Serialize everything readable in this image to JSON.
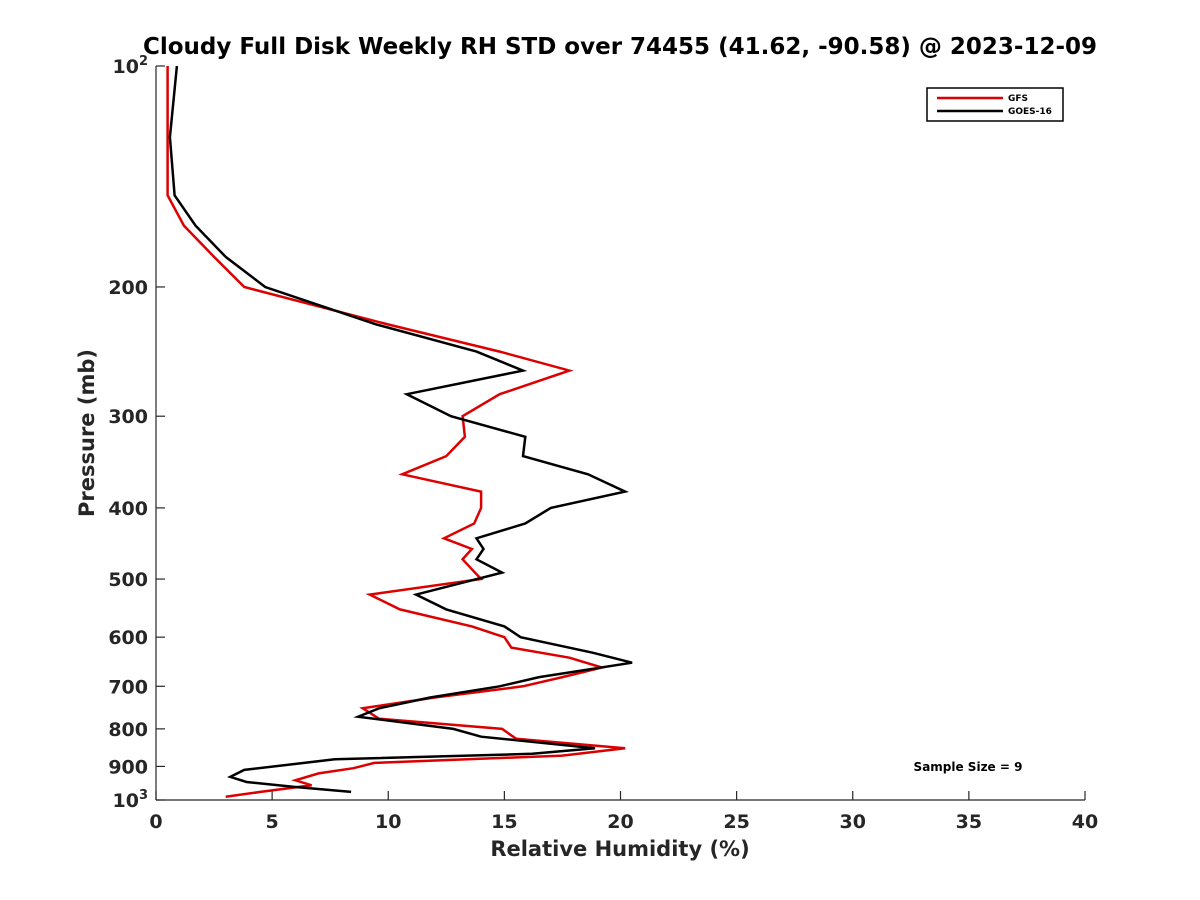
{
  "chart_data": {
    "type": "line",
    "title": "Cloudy Full Disk Weekly RH STD over 74455 (41.62, -90.58) @ 2023-12-09",
    "xlabel": "Relative Humidity (%)",
    "ylabel": "Pressure (mb)",
    "xlim": [
      0,
      40
    ],
    "ylim": [
      100,
      1000
    ],
    "y_scale": "log",
    "y_reversed": true,
    "grid": false,
    "x_ticks": [
      0,
      5,
      10,
      15,
      20,
      25,
      30,
      35,
      40
    ],
    "x_tick_labels": [
      "0",
      "5",
      "10",
      "15",
      "20",
      "25",
      "30",
      "35",
      "40"
    ],
    "y_ticks": [
      100,
      200,
      300,
      400,
      500,
      600,
      700,
      800,
      900,
      1000
    ],
    "y_tick_labels": [
      {
        "base": "10",
        "exp": "2"
      },
      {
        "base": "200",
        "exp": ""
      },
      {
        "base": "300",
        "exp": ""
      },
      {
        "base": "400",
        "exp": ""
      },
      {
        "base": "500",
        "exp": ""
      },
      {
        "base": "600",
        "exp": ""
      },
      {
        "base": "700",
        "exp": ""
      },
      {
        "base": "800",
        "exp": ""
      },
      {
        "base": "900",
        "exp": ""
      },
      {
        "base": "10",
        "exp": "3"
      }
    ],
    "legend_position": "top-right",
    "annotation": "Sample Size = 9",
    "series": [
      {
        "name": "GFS",
        "color": "#dd0000",
        "points": [
          [
            0.5,
            100
          ],
          [
            0.5,
            125
          ],
          [
            0.5,
            150
          ],
          [
            1.2,
            165
          ],
          [
            2.5,
            182
          ],
          [
            3.8,
            200
          ],
          [
            10,
            225
          ],
          [
            14.8,
            245
          ],
          [
            17.8,
            260
          ],
          [
            14.8,
            280
          ],
          [
            13.2,
            300
          ],
          [
            13.3,
            320
          ],
          [
            12.5,
            340
          ],
          [
            10.6,
            360
          ],
          [
            14,
            380
          ],
          [
            14,
            400
          ],
          [
            13.7,
            420
          ],
          [
            12.4,
            440
          ],
          [
            13.6,
            455
          ],
          [
            13.2,
            470
          ],
          [
            13.6,
            485
          ],
          [
            14,
            500
          ],
          [
            9.2,
            525
          ],
          [
            10.5,
            550
          ],
          [
            13.6,
            580
          ],
          [
            15,
            600
          ],
          [
            15.3,
            620
          ],
          [
            17.8,
            640
          ],
          [
            19.2,
            660
          ],
          [
            17.5,
            680
          ],
          [
            15.8,
            700
          ],
          [
            12,
            725
          ],
          [
            8.9,
            750
          ],
          [
            9.6,
            775
          ],
          [
            14.9,
            800
          ],
          [
            15.5,
            825
          ],
          [
            20.2,
            850
          ],
          [
            17.5,
            870
          ],
          [
            9.4,
            890
          ],
          [
            8.5,
            905
          ],
          [
            7,
            920
          ],
          [
            6,
            940
          ],
          [
            6.7,
            955
          ],
          [
            4.5,
            975
          ],
          [
            3,
            990
          ]
        ]
      },
      {
        "name": "GOES-16",
        "color": "#000000",
        "points": [
          [
            0.9,
            100
          ],
          [
            0.6,
            125
          ],
          [
            0.8,
            150
          ],
          [
            1.7,
            165
          ],
          [
            3,
            182
          ],
          [
            4.7,
            200
          ],
          [
            9.5,
            225
          ],
          [
            13.8,
            245
          ],
          [
            15.8,
            260
          ],
          [
            10.8,
            280
          ],
          [
            12.7,
            300
          ],
          [
            15.9,
            320
          ],
          [
            15.8,
            340
          ],
          [
            18.6,
            360
          ],
          [
            20.2,
            380
          ],
          [
            17,
            400
          ],
          [
            15.9,
            420
          ],
          [
            13.8,
            440
          ],
          [
            14.1,
            455
          ],
          [
            13.8,
            470
          ],
          [
            14.9,
            490
          ],
          [
            11.2,
            525
          ],
          [
            12.5,
            550
          ],
          [
            15,
            580
          ],
          [
            15.7,
            600
          ],
          [
            18.8,
            630
          ],
          [
            20.5,
            650
          ],
          [
            16.5,
            680
          ],
          [
            14.8,
            700
          ],
          [
            11.8,
            725
          ],
          [
            9.6,
            750
          ],
          [
            8.7,
            770
          ],
          [
            12.8,
            800
          ],
          [
            14,
            820
          ],
          [
            18.9,
            850
          ],
          [
            16.2,
            865
          ],
          [
            7.7,
            880
          ],
          [
            3.8,
            910
          ],
          [
            3.2,
            930
          ],
          [
            3.9,
            945
          ],
          [
            6,
            960
          ],
          [
            8.4,
            975
          ]
        ]
      }
    ]
  }
}
